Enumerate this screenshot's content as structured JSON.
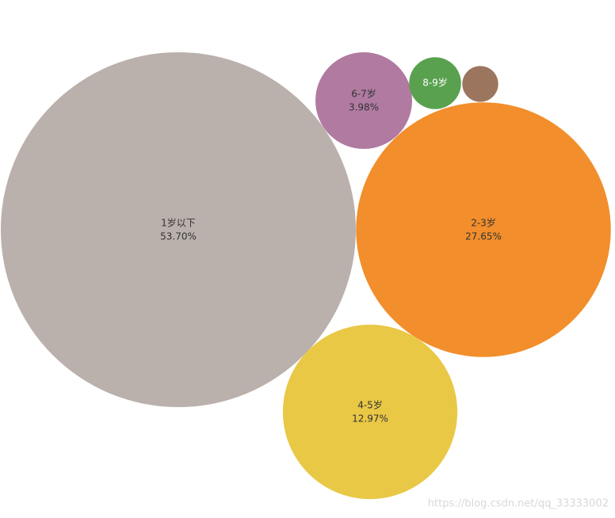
{
  "chart_data": {
    "type": "bubble",
    "categories": [
      "1岁以下",
      "2-3岁",
      "4-5岁",
      "6-7岁",
      "8-9岁",
      null
    ],
    "values": [
      53.7,
      27.65,
      12.97,
      3.98,
      1.15,
      0.55
    ],
    "value_labels": [
      "53.70%",
      "27.65%",
      "12.97%",
      "3.98%",
      null,
      null
    ],
    "colors": [
      "#bab0ac",
      "#f28e2b",
      "#e9c846",
      "#b07aa1",
      "#59a14f",
      "#9c755f"
    ]
  },
  "watermark": "https://blog.csdn.net/qq_33333002"
}
